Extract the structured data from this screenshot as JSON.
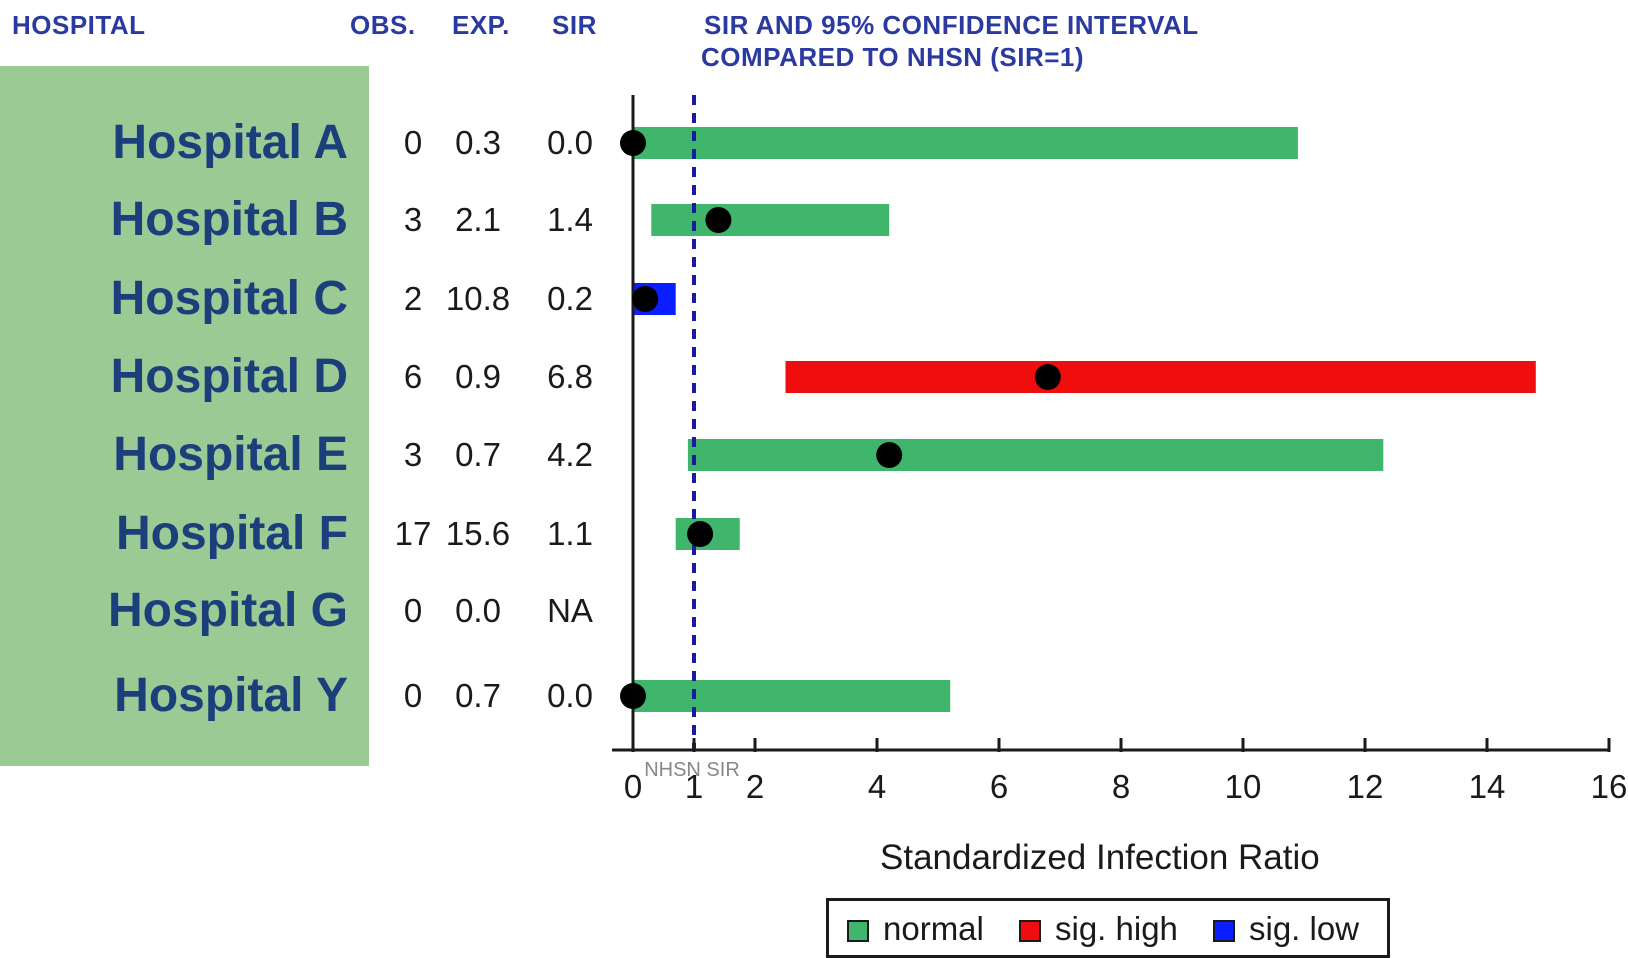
{
  "headers": {
    "hospital": "HOSPITAL",
    "obs": "OBS.",
    "exp": "EXP.",
    "sir": "SIR",
    "chart_title_line1": "SIR AND 95% CONFIDENCE INTERVAL",
    "chart_title_line2": "COMPARED TO NHSN (SIR=1)"
  },
  "colors": {
    "normal": "#3fb66b",
    "sig_high": "#f00d0d",
    "sig_low": "#0a1eff",
    "reference_line": "#1a1aa0",
    "name_panel": "#9cca94"
  },
  "chart_data": {
    "type": "forest",
    "title": "SIR AND 95% CONFIDENCE INTERVAL COMPARED TO NHSN (SIR=1)",
    "xlabel": "Standardized Infection Ratio",
    "xlim": [
      0,
      16
    ],
    "xticks": [
      0,
      1,
      2,
      4,
      6,
      8,
      10,
      12,
      14,
      16
    ],
    "reference": {
      "value": 1,
      "label": "NHSN SIR",
      "style": "dashed"
    },
    "legend": [
      {
        "key": "normal",
        "label": "normal"
      },
      {
        "key": "sig_high",
        "label": "sig. high"
      },
      {
        "key": "sig_low",
        "label": "sig. low"
      }
    ],
    "rows": [
      {
        "hospital": "Hospital A",
        "obs": "0",
        "exp": "0.3",
        "sir_text": "0.0",
        "sir": 0.0,
        "ci_low": 0.0,
        "ci_high": 10.9,
        "status": "normal"
      },
      {
        "hospital": "Hospital B",
        "obs": "3",
        "exp": "2.1",
        "sir_text": "1.4",
        "sir": 1.4,
        "ci_low": 0.3,
        "ci_high": 4.2,
        "status": "normal"
      },
      {
        "hospital": "Hospital C",
        "obs": "2",
        "exp": "10.8",
        "sir_text": "0.2",
        "sir": 0.2,
        "ci_low": 0.0,
        "ci_high": 0.7,
        "status": "sig_low"
      },
      {
        "hospital": "Hospital D",
        "obs": "6",
        "exp": "0.9",
        "sir_text": "6.8",
        "sir": 6.8,
        "ci_low": 2.5,
        "ci_high": 14.8,
        "status": "sig_high"
      },
      {
        "hospital": "Hospital E",
        "obs": "3",
        "exp": "0.7",
        "sir_text": "4.2",
        "sir": 4.2,
        "ci_low": 0.9,
        "ci_high": 12.3,
        "status": "normal"
      },
      {
        "hospital": "Hospital F",
        "obs": "17",
        "exp": "15.6",
        "sir_text": "1.1",
        "sir": 1.1,
        "ci_low": 0.7,
        "ci_high": 1.75,
        "status": "normal"
      },
      {
        "hospital": "Hospital G",
        "obs": "0",
        "exp": "0.0",
        "sir_text": "NA",
        "sir": null,
        "ci_low": null,
        "ci_high": null,
        "status": "none"
      },
      {
        "hospital": "Hospital Y",
        "obs": "0",
        "exp": "0.7",
        "sir_text": "0.0",
        "sir": 0.0,
        "ci_low": 0.0,
        "ci_high": 5.2,
        "status": "normal"
      }
    ]
  }
}
